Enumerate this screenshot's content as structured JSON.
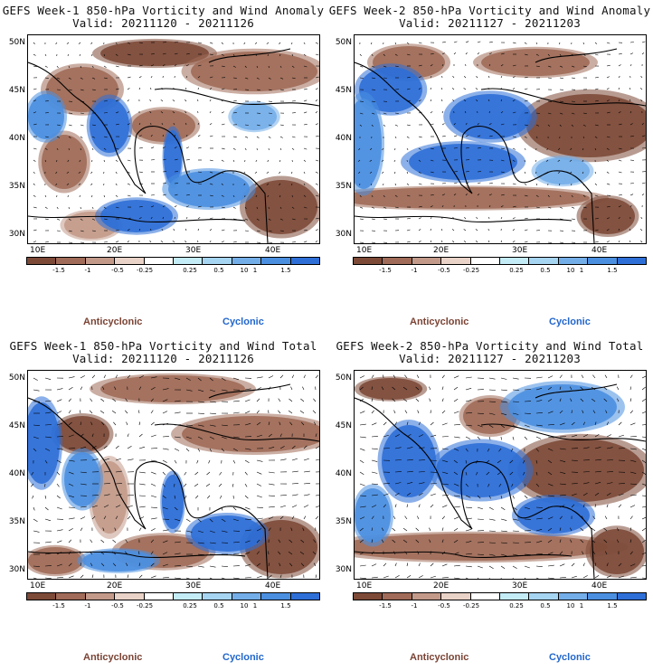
{
  "colors": {
    "cbar": [
      "#7d4a38",
      "#a06b58",
      "#c39a8a",
      "#e9d2c7",
      "#ffffff",
      "#c3ecf7",
      "#a6d5f2",
      "#74aee9",
      "#4b8fe0",
      "#2e6fd7"
    ],
    "legend_anticyclonic": "#7a4334",
    "legend_cyclonic": "#2266cc"
  },
  "cbar_labels": [
    "-1.5",
    "-1",
    "-0.5",
    "-0.25",
    "0.25",
    "0.5",
    "1",
    "1.5"
  ],
  "cbar_scale_mark": "10",
  "lat_ticks": [
    "50N",
    "45N",
    "40N",
    "35N",
    "30N"
  ],
  "lon_ticks": [
    "10E",
    "20E",
    "30E",
    "40E"
  ],
  "legend": {
    "anticyclonic": "Anticyclonic",
    "cyclonic": "Cyclonic"
  },
  "panels": [
    {
      "title": "GEFS Week-1 850-hPa Vorticity and Wind Anomaly",
      "valid": "Valid: 20211120 - 20211126"
    },
    {
      "title": "GEFS Week-2 850-hPa Vorticity and Wind Anomaly",
      "valid": "Valid: 20211127 - 20211203"
    },
    {
      "title": "GEFS Week-1 850-hPa Vorticity and Wind Total",
      "valid": "Valid: 20211120 - 20211126"
    },
    {
      "title": "GEFS Week-2 850-hPa Vorticity and Wind Total",
      "valid": "Valid: 20211127 - 20211203"
    }
  ]
}
